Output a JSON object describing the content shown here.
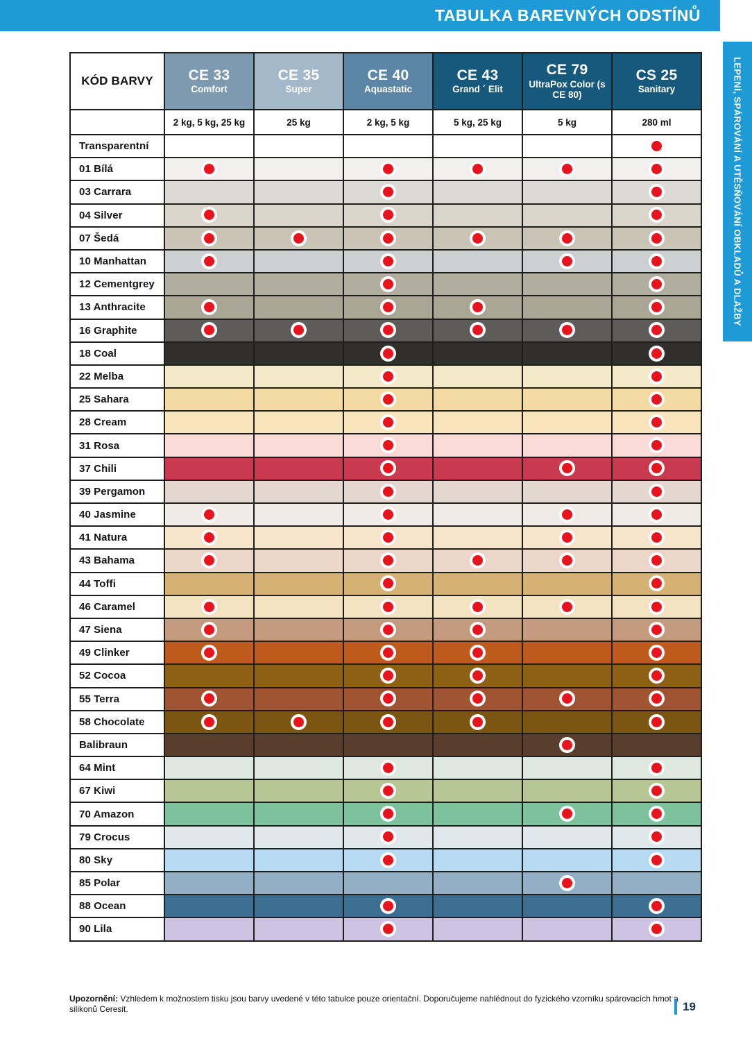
{
  "header": {
    "title": "TABULKA BAREVNÝCH ODSTÍNŮ"
  },
  "sidebar": {
    "text": "LEPENÍ, SPÁROVÁNÍ A UTĚSŇOVÁNÍ OBKLADŮ A DLAŽBY"
  },
  "accent_colors": {
    "brand_blue": "#1e9bd7",
    "dot_red": "#e8141d",
    "dark_teal": "#17597c"
  },
  "table": {
    "code_col_label": "KÓD BARVY",
    "products": [
      {
        "code": "CE 33",
        "name": "Comfort",
        "packaging": "2 kg, 5 kg, 25 kg",
        "header_color": "#7e9ab0"
      },
      {
        "code": "CE 35",
        "name": "Super",
        "packaging": "25 kg",
        "header_color": "#a3b8c8"
      },
      {
        "code": "CE 40",
        "name": "Aquastatic",
        "packaging": "2 kg, 5 kg",
        "header_color": "#5b86a5"
      },
      {
        "code": "CE 43",
        "name": "Grand ´ Elit",
        "packaging": "5 kg, 25 kg",
        "header_color": "#17597c"
      },
      {
        "code": "CE 79",
        "name": "UltraPox Color (s CE 80)",
        "packaging": "5 kg",
        "header_color": "#17597c"
      },
      {
        "code": "CS 25",
        "name": "Sanitary",
        "packaging": "280 ml",
        "header_color": "#17597c"
      }
    ],
    "rows": [
      {
        "label": "Transparentní",
        "color": "#ffffff",
        "dots": [
          0,
          0,
          0,
          0,
          0,
          1
        ]
      },
      {
        "label": "01 Bílá",
        "color": "#f1f0ee",
        "dots": [
          1,
          0,
          1,
          1,
          1,
          1
        ]
      },
      {
        "label": "03 Carrara",
        "color": "#dcdad5",
        "dots": [
          0,
          0,
          1,
          0,
          0,
          1
        ]
      },
      {
        "label": "04 Silver",
        "color": "#d9d5cb",
        "dots": [
          1,
          0,
          1,
          0,
          0,
          1
        ]
      },
      {
        "label": "07 Šedá",
        "color": "#c9c4b6",
        "dots": [
          1,
          1,
          1,
          1,
          1,
          1
        ]
      },
      {
        "label": "10 Manhattan",
        "color": "#cdd0d2",
        "dots": [
          1,
          0,
          1,
          0,
          1,
          1
        ]
      },
      {
        "label": "12 Cementgrey",
        "color": "#b2ae9f",
        "dots": [
          0,
          0,
          1,
          0,
          0,
          1
        ]
      },
      {
        "label": "13 Anthracite",
        "color": "#a9a695",
        "dots": [
          1,
          0,
          1,
          1,
          0,
          1
        ]
      },
      {
        "label": "16 Graphite",
        "color": "#5e5c5a",
        "dots": [
          1,
          1,
          1,
          1,
          1,
          1
        ]
      },
      {
        "label": "18 Coal",
        "color": "#312f2b",
        "dots": [
          0,
          0,
          1,
          0,
          0,
          1
        ]
      },
      {
        "label": "22 Melba",
        "color": "#f4e9c8",
        "dots": [
          0,
          0,
          1,
          0,
          0,
          1
        ]
      },
      {
        "label": "25 Sahara",
        "color": "#f3d9a2",
        "dots": [
          0,
          0,
          1,
          0,
          0,
          1
        ]
      },
      {
        "label": "28 Cream",
        "color": "#f9e5bc",
        "dots": [
          0,
          0,
          1,
          0,
          0,
          1
        ]
      },
      {
        "label": "31 Rosa",
        "color": "#fadbd8",
        "dots": [
          0,
          0,
          1,
          0,
          0,
          1
        ]
      },
      {
        "label": "37 Chili",
        "color": "#c93a50",
        "dots": [
          0,
          0,
          1,
          0,
          1,
          1
        ]
      },
      {
        "label": "39 Pergamon",
        "color": "#e3d7cf",
        "dots": [
          0,
          0,
          1,
          0,
          0,
          1
        ]
      },
      {
        "label": "40 Jasmine",
        "color": "#f0ece5",
        "dots": [
          1,
          0,
          1,
          0,
          1,
          1
        ]
      },
      {
        "label": "41 Natura",
        "color": "#f6e5ca",
        "dots": [
          1,
          0,
          1,
          0,
          1,
          1
        ]
      },
      {
        "label": "43 Bahama",
        "color": "#ecd6c9",
        "dots": [
          1,
          0,
          1,
          1,
          1,
          1
        ]
      },
      {
        "label": "44 Toffi",
        "color": "#d5b274",
        "dots": [
          0,
          0,
          1,
          0,
          0,
          1
        ]
      },
      {
        "label": "46 Caramel",
        "color": "#f3e3c0",
        "dots": [
          1,
          0,
          1,
          1,
          1,
          1
        ]
      },
      {
        "label": "47 Siena",
        "color": "#c59b7f",
        "dots": [
          1,
          0,
          1,
          1,
          0,
          1
        ]
      },
      {
        "label": "49 Clinker",
        "color": "#bf5a1d",
        "dots": [
          1,
          0,
          1,
          1,
          0,
          1
        ]
      },
      {
        "label": "52 Cocoa",
        "color": "#8e6014",
        "dots": [
          0,
          0,
          1,
          1,
          0,
          1
        ]
      },
      {
        "label": "55 Terra",
        "color": "#a05532",
        "dots": [
          1,
          0,
          1,
          1,
          1,
          1
        ]
      },
      {
        "label": "58 Chocolate",
        "color": "#7c5511",
        "dots": [
          1,
          1,
          1,
          1,
          0,
          1
        ]
      },
      {
        "label": "Balibraun",
        "color": "#5a3e2d",
        "dots": [
          0,
          0,
          0,
          0,
          1,
          0
        ]
      },
      {
        "label": "64 Mint",
        "color": "#dde8df",
        "dots": [
          0,
          0,
          1,
          0,
          0,
          1
        ]
      },
      {
        "label": "67 Kiwi",
        "color": "#b6c695",
        "dots": [
          0,
          0,
          1,
          0,
          0,
          1
        ]
      },
      {
        "label": "70 Amazon",
        "color": "#7dc29c",
        "dots": [
          0,
          0,
          1,
          0,
          1,
          1
        ]
      },
      {
        "label": "79 Crocus",
        "color": "#e0e8eb",
        "dots": [
          0,
          0,
          1,
          0,
          0,
          1
        ]
      },
      {
        "label": "80 Sky",
        "color": "#b7daf3",
        "dots": [
          0,
          0,
          1,
          0,
          0,
          1
        ]
      },
      {
        "label": "85 Polar",
        "color": "#93afc5",
        "dots": [
          0,
          0,
          0,
          0,
          1,
          0
        ]
      },
      {
        "label": "88 Ocean",
        "color": "#3c6e92",
        "dots": [
          0,
          0,
          1,
          0,
          0,
          1
        ]
      },
      {
        "label": "90 Lila",
        "color": "#cec4e1",
        "dots": [
          0,
          0,
          1,
          0,
          0,
          1
        ]
      }
    ]
  },
  "footnote": {
    "bold": "Upozornění:",
    "text": " Vzhledem k možnostem tisku jsou barvy uvedené v této tabulce pouze orientační. Doporučujeme nahlédnout do fyzického vzorníku spárovacích hmot a silikonů Ceresit."
  },
  "page_number": "19"
}
